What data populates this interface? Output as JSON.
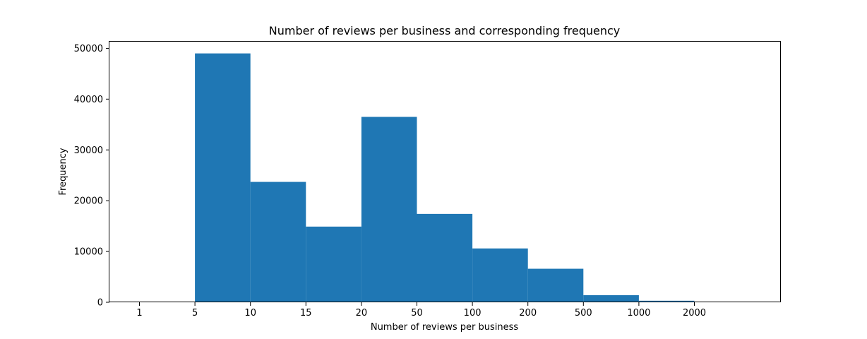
{
  "chart_data": {
    "type": "bar",
    "title": "Number of reviews per business and corresponding frequency",
    "xlabel": "Number of reviews per business",
    "ylabel": "Frequency",
    "x_tick_labels": [
      "1",
      "5",
      "10",
      "15",
      "20",
      "50",
      "100",
      "200",
      "500",
      "1000",
      "2000"
    ],
    "categories": [
      "1-5",
      "5-10",
      "10-15",
      "15-20",
      "20-50",
      "50-100",
      "100-200",
      "200-500",
      "500-1000",
      "1000-2000"
    ],
    "values": [
      0,
      49000,
      23700,
      14900,
      36500,
      17400,
      10600,
      6600,
      1400,
      300
    ],
    "y_ticks": [
      0,
      10000,
      20000,
      30000,
      40000,
      50000
    ],
    "ylim": [
      0,
      51450
    ],
    "bar_color": "#1f77b4",
    "grid": false,
    "legend": "none"
  }
}
